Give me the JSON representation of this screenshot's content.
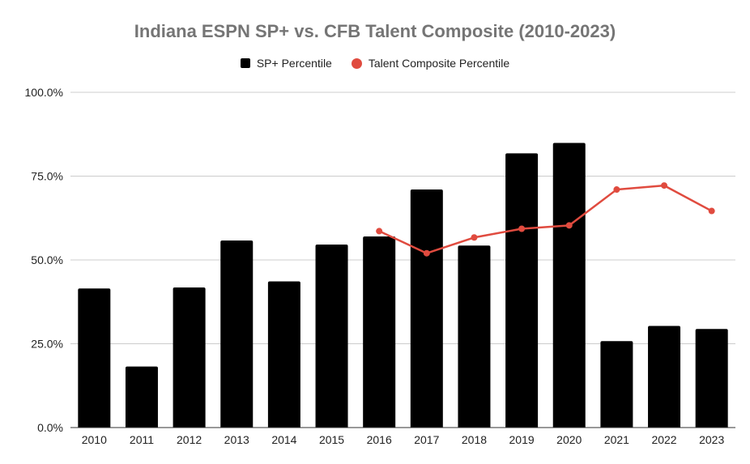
{
  "chart_data": {
    "type": "bar",
    "title": "Indiana ESPN SP+ vs. CFB Talent Composite (2010-2023)",
    "categories": [
      "2010",
      "2011",
      "2012",
      "2013",
      "2014",
      "2015",
      "2016",
      "2017",
      "2018",
      "2019",
      "2020",
      "2021",
      "2022",
      "2023"
    ],
    "series": [
      {
        "name": "SP+ Percentile",
        "type": "bar",
        "color": "#000000",
        "values": [
          41.5,
          18.2,
          41.8,
          55.8,
          43.6,
          54.6,
          57.0,
          71.0,
          54.3,
          81.8,
          84.9,
          25.8,
          30.3,
          29.4
        ]
      },
      {
        "name": "Talent Composite Percentile",
        "type": "line",
        "color": "#e04b3f",
        "values": [
          null,
          null,
          null,
          null,
          null,
          null,
          58.6,
          52.0,
          56.7,
          59.3,
          60.3,
          71.0,
          72.2,
          64.6
        ]
      }
    ],
    "ylim": [
      0,
      100
    ],
    "yticks": [
      "0.0%",
      "25.0%",
      "50.0%",
      "75.0%",
      "100.0%"
    ],
    "ytick_values": [
      0,
      25,
      50,
      75,
      100
    ],
    "grid": true,
    "legend_position": "top"
  }
}
